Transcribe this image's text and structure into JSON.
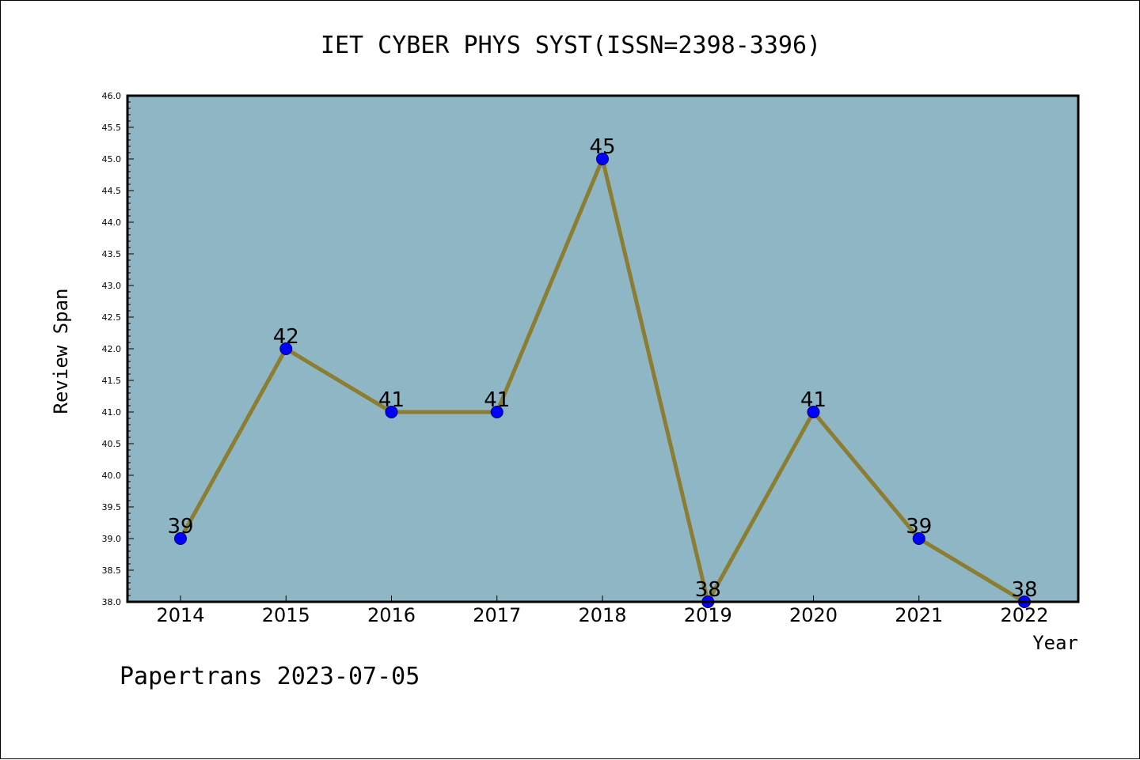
{
  "chart_data": {
    "type": "line",
    "title": "IET CYBER PHYS SYST(ISSN=2398-3396)",
    "xlabel": "Year",
    "ylabel": "Review Span",
    "x": [
      "2014",
      "2015",
      "2016",
      "2017",
      "2018",
      "2019",
      "2020",
      "2021",
      "2022"
    ],
    "series": [
      {
        "values": [
          39,
          42,
          41,
          41,
          45,
          38,
          41,
          39,
          38
        ]
      }
    ],
    "data_labels": [
      "39",
      "42",
      "41",
      "41",
      "45",
      "38",
      "41",
      "39",
      "38"
    ],
    "ylim": [
      38.0,
      46.0
    ],
    "yticks": [
      "38.0",
      "38.5",
      "39.0",
      "39.5",
      "40.0",
      "40.5",
      "41.0",
      "41.5",
      "42.0",
      "42.5",
      "43.0",
      "43.5",
      "44.0",
      "44.5",
      "45.0",
      "45.5",
      "46.0"
    ],
    "grid": false,
    "legend": "none",
    "footer": "Papertrans 2023-07-05",
    "colors": {
      "plot_background": "#8fb6c4",
      "line": "#8b7d32",
      "marker": "#0000ff",
      "marker_edge": "#00006e"
    }
  }
}
